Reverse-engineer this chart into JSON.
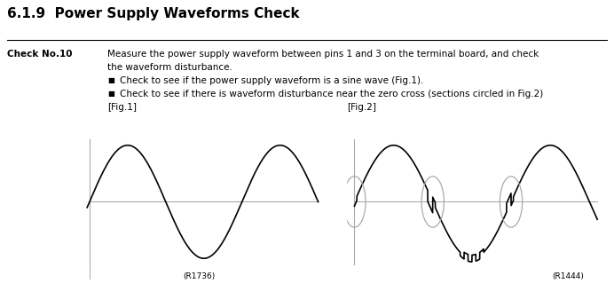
{
  "title": "6.1.9  Power Supply Waveforms Check",
  "title_fontsize": 11,
  "title_fontweight": "bold",
  "background_color": "#ffffff",
  "check_no_label": "Check No.10",
  "desc1": "Measure the power supply waveform between pins 1 and 3 on the terminal board, and check",
  "desc2": "the waveform disturbance.",
  "bullet1": "Check to see if the power supply waveform is a sine wave (Fig.1).",
  "bullet2": "Check to see if there is waveform disturbance near the zero cross (sections circled in Fig.2)",
  "fig1_label": "[Fig.1]",
  "fig2_label": "[Fig.2]",
  "ref1": "(R1736)",
  "ref2": "(R1444)",
  "text_color": "#000000",
  "wave_color": "#000000",
  "axis_color": "#aaaaaa",
  "circle_color": "#aaaaaa",
  "sep_color": "#000000"
}
